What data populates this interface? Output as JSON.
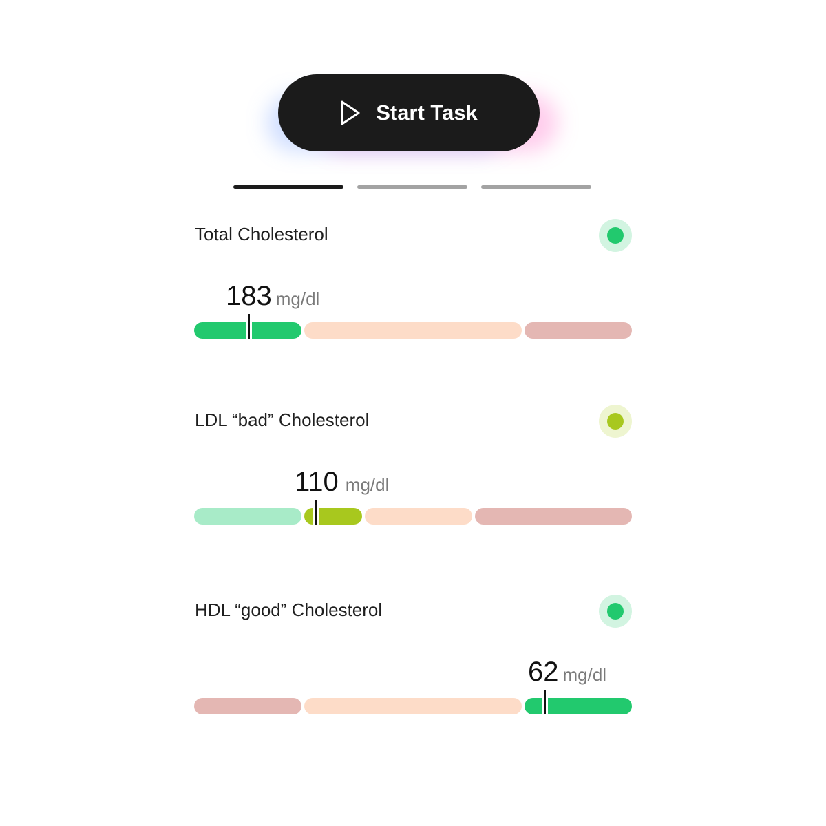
{
  "start_button": {
    "label": "Start Task",
    "icon": "play-icon"
  },
  "progress_tabs": [
    {
      "state": "active"
    },
    {
      "state": "inactive"
    },
    {
      "state": "inactive"
    }
  ],
  "colors": {
    "green": "#22c96e",
    "light_green": "#a8ebc8",
    "yellow_green": "#a8c81e",
    "peach": "#fddcc8",
    "rose": "#e4b7b3"
  },
  "metrics": [
    {
      "title": "Total Cholesterol",
      "value": "183",
      "unit": "mg/dl",
      "status_color": "#22c96e"
    },
    {
      "title": "LDL “bad” Cholesterol",
      "value": "110",
      "unit": "mg/dl",
      "status_color": "#a8c81e"
    },
    {
      "title": "HDL “good” Cholesterol",
      "value": "62",
      "unit": "mg/dl",
      "status_color": "#22c96e"
    }
  ]
}
